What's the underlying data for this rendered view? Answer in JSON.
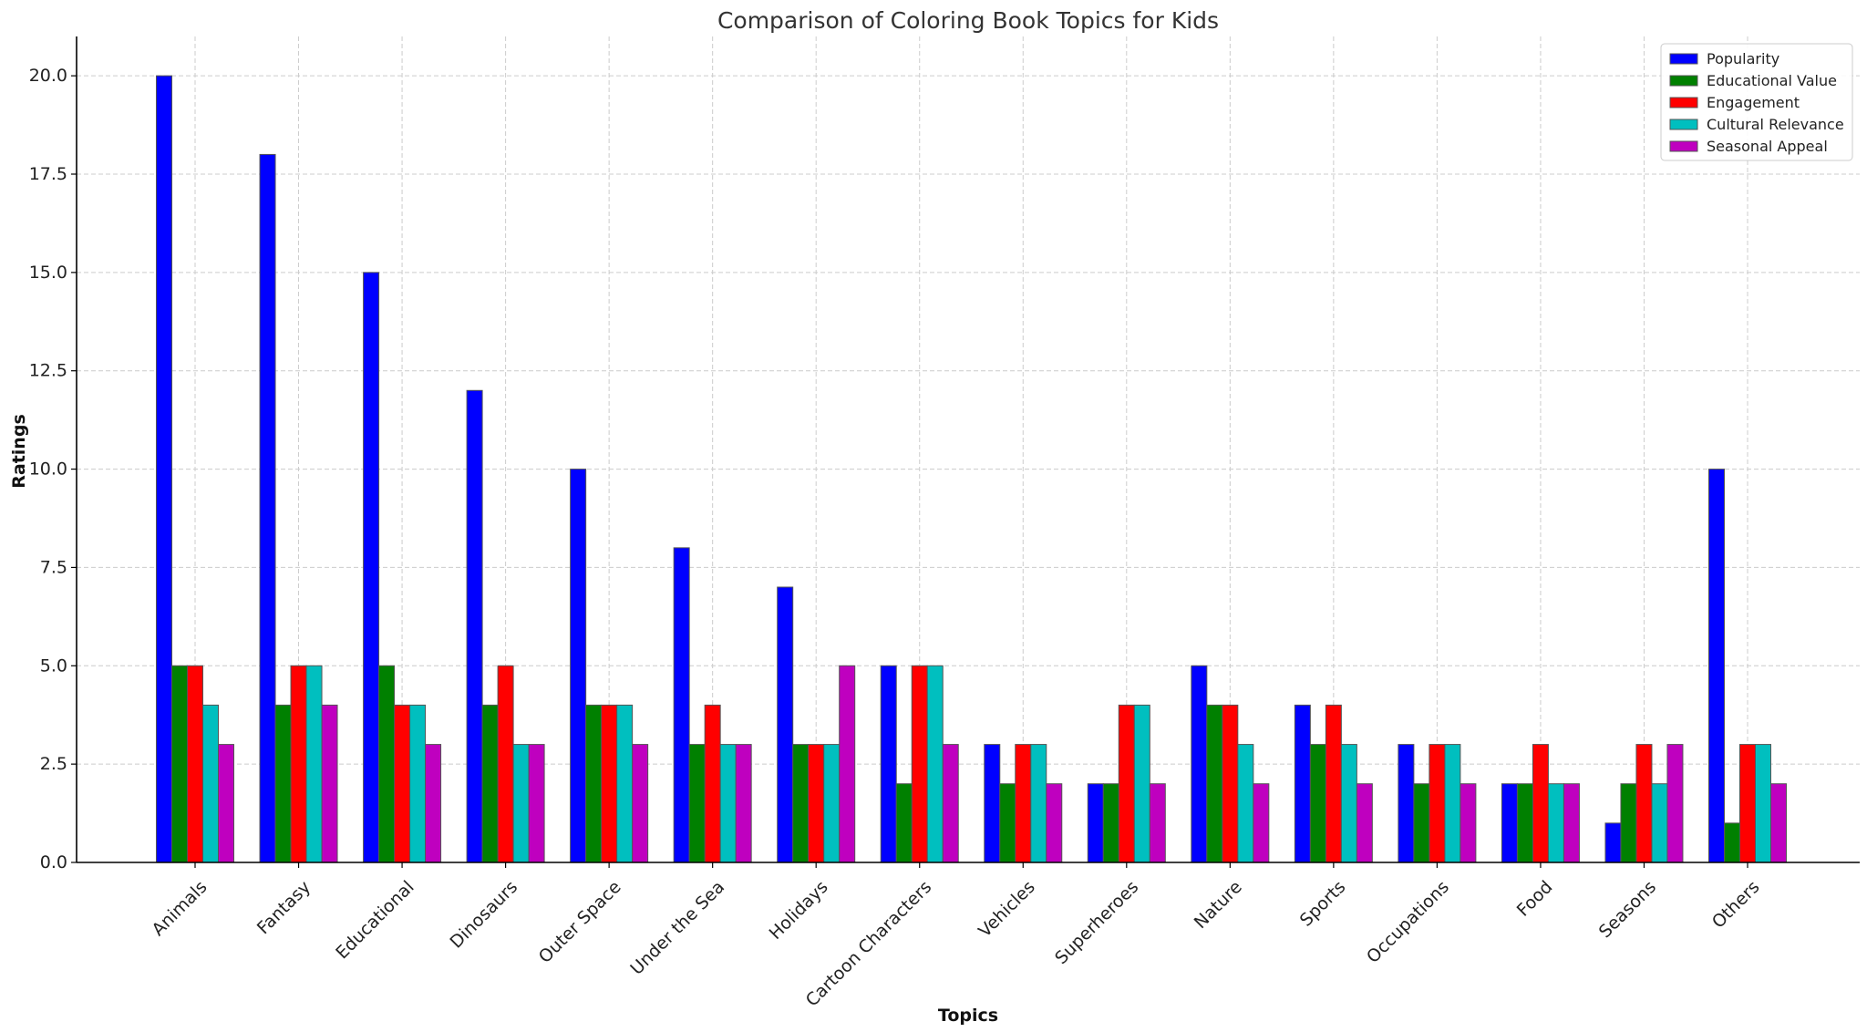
{
  "chart_data": {
    "type": "bar",
    "title": "Comparison of Coloring Book Topics for Kids",
    "xlabel": "Topics",
    "ylabel": "Ratings",
    "ylim": [
      0,
      21
    ],
    "yticks": [
      "0.0",
      "2.5",
      "5.0",
      "7.5",
      "10.0",
      "12.5",
      "15.0",
      "17.5",
      "20.0"
    ],
    "grid": true,
    "legend_position": "top-right",
    "categories": [
      "Animals",
      "Fantasy",
      "Educational",
      "Dinosaurs",
      "Outer Space",
      "Under the Sea",
      "Holidays",
      "Cartoon Characters",
      "Vehicles",
      "Superheroes",
      "Nature",
      "Sports",
      "Occupations",
      "Food",
      "Seasons",
      "Others"
    ],
    "series": [
      {
        "name": "Popularity",
        "color": "#0000ff",
        "values": [
          20,
          18,
          15,
          12,
          10,
          8,
          7,
          5,
          3,
          2,
          5,
          4,
          3,
          2,
          1,
          10
        ]
      },
      {
        "name": "Educational Value",
        "color": "#008000",
        "values": [
          5,
          4,
          5,
          4,
          4,
          3,
          3,
          2,
          2,
          2,
          4,
          3,
          2,
          2,
          2,
          1
        ]
      },
      {
        "name": "Engagement",
        "color": "#ff0000",
        "values": [
          5,
          5,
          4,
          5,
          4,
          4,
          3,
          5,
          3,
          4,
          4,
          4,
          3,
          3,
          3,
          3
        ]
      },
      {
        "name": "Cultural Relevance",
        "color": "#00bfbf",
        "values": [
          4,
          5,
          4,
          3,
          4,
          3,
          3,
          5,
          3,
          4,
          3,
          3,
          3,
          2,
          2,
          3
        ]
      },
      {
        "name": "Seasonal Appeal",
        "color": "#bf00bf",
        "values": [
          3,
          4,
          3,
          3,
          3,
          3,
          5,
          3,
          2,
          2,
          2,
          2,
          2,
          2,
          3,
          2
        ]
      }
    ]
  }
}
